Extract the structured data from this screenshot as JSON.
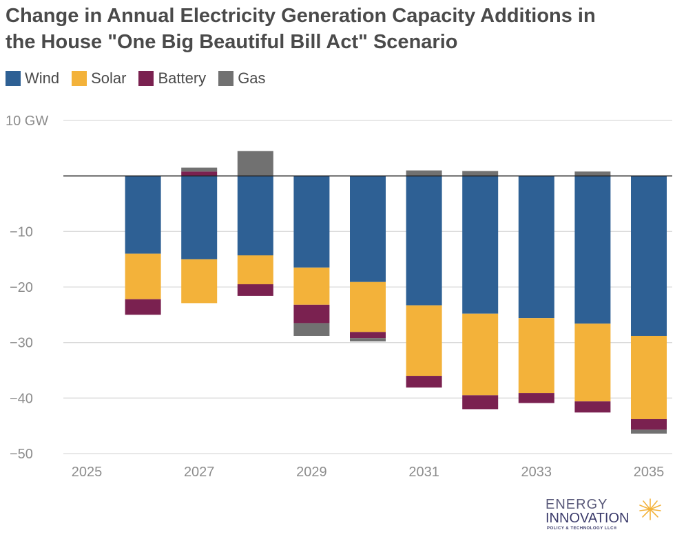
{
  "chart_data": {
    "type": "bar",
    "stacked": true,
    "title": "Change in Annual Electricity Generation Capacity Additions in the House \"One Big Beautiful Bill Act\" Scenario",
    "title_lines": [
      "Change in Annual Electricity Generation Capacity Additions in",
      "the House \"One Big Beautiful Bill Act\" Scenario"
    ],
    "x": [
      2025,
      2026,
      2027,
      2028,
      2029,
      2030,
      2031,
      2032,
      2033,
      2034,
      2035
    ],
    "xtick_labels": [
      "2025",
      "2027",
      "2029",
      "2031",
      "2033",
      "2035"
    ],
    "xtick_values": [
      2025,
      2027,
      2029,
      2031,
      2033,
      2035
    ],
    "ytick_labels": [
      "10 GW",
      "−10",
      "−20",
      "−30",
      "−40",
      "−50"
    ],
    "ytick_values": [
      10,
      -10,
      -20,
      -30,
      -40,
      -50
    ],
    "ylim": [
      -50,
      10
    ],
    "grid": true,
    "legend_position": "top-left",
    "series": [
      {
        "name": "Wind",
        "color": "#2e6094",
        "values": [
          0,
          -14.0,
          -15.0,
          -14.3,
          -16.5,
          -19.1,
          -23.3,
          -24.8,
          -25.6,
          -26.6,
          -28.8
        ]
      },
      {
        "name": "Solar",
        "color": "#f3b23a",
        "values": [
          0,
          -8.2,
          -7.9,
          -5.2,
          -6.7,
          -9.0,
          -12.7,
          -14.7,
          -13.5,
          -14.0,
          -15.0
        ]
      },
      {
        "name": "Battery",
        "color": "#7a2150",
        "values": [
          0,
          -2.8,
          0.8,
          -2.1,
          -3.3,
          -1.1,
          -2.1,
          -2.5,
          -1.8,
          -2.0,
          -1.9
        ]
      },
      {
        "name": "Gas",
        "color": "#717171",
        "values": [
          0,
          0,
          0.7,
          4.5,
          -2.3,
          -0.6,
          1.0,
          0.9,
          0,
          0.8,
          -0.7
        ]
      }
    ]
  },
  "logo": {
    "line1": "ENERGY",
    "line2": "INNOVATION",
    "line3": "POLICY & TECHNOLOGY LLC®"
  }
}
